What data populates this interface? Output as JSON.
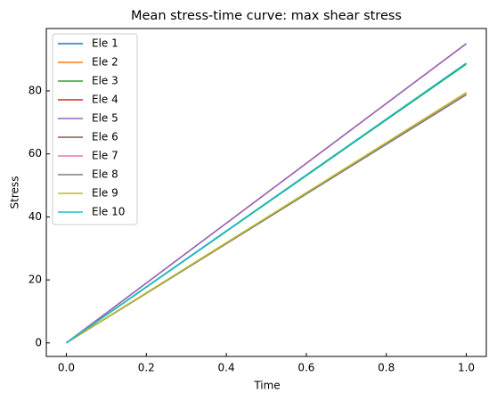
{
  "chart_data": {
    "type": "line",
    "title": "Mean stress-time curve: max shear stress",
    "x_label": "Time",
    "y_label": "Stress",
    "x": [
      0,
      1
    ],
    "series": [
      {
        "name": "Ele 1",
        "color": "#1f77b4",
        "values": [
          0,
          88.8
        ]
      },
      {
        "name": "Ele 2",
        "color": "#ff7f0e",
        "values": [
          0,
          79.3
        ]
      },
      {
        "name": "Ele 3",
        "color": "#2ca02c",
        "values": [
          0,
          88.5
        ]
      },
      {
        "name": "Ele 4",
        "color": "#d62728",
        "values": [
          0,
          95
        ]
      },
      {
        "name": "Ele 5",
        "color": "#9467bd",
        "values": [
          0,
          95
        ]
      },
      {
        "name": "Ele 6",
        "color": "#8c564b",
        "values": [
          0,
          78.8
        ]
      },
      {
        "name": "Ele 7",
        "color": "#e377c2",
        "values": [
          0,
          79.3
        ]
      },
      {
        "name": "Ele 8",
        "color": "#7f7f7f",
        "values": [
          0,
          78.8
        ]
      },
      {
        "name": "Ele 9",
        "color": "#bcbd22",
        "values": [
          0,
          79.5
        ]
      },
      {
        "name": "Ele 10",
        "color": "#17becf",
        "values": [
          0,
          88.8
        ]
      }
    ],
    "xlim": [
      -0.05,
      1.05
    ],
    "ylim": [
      -4.3,
      99.8
    ],
    "xticks": [
      {
        "value": 0,
        "label": "0.0"
      },
      {
        "value": 0.2,
        "label": "0.2"
      },
      {
        "value": 0.4,
        "label": "0.4"
      },
      {
        "value": 0.6,
        "label": "0.6"
      },
      {
        "value": 0.8,
        "label": "0.8"
      },
      {
        "value": 1,
        "label": "1.0"
      }
    ],
    "yticks": [
      0,
      20,
      40,
      60,
      80
    ],
    "legend": "upper-left"
  }
}
